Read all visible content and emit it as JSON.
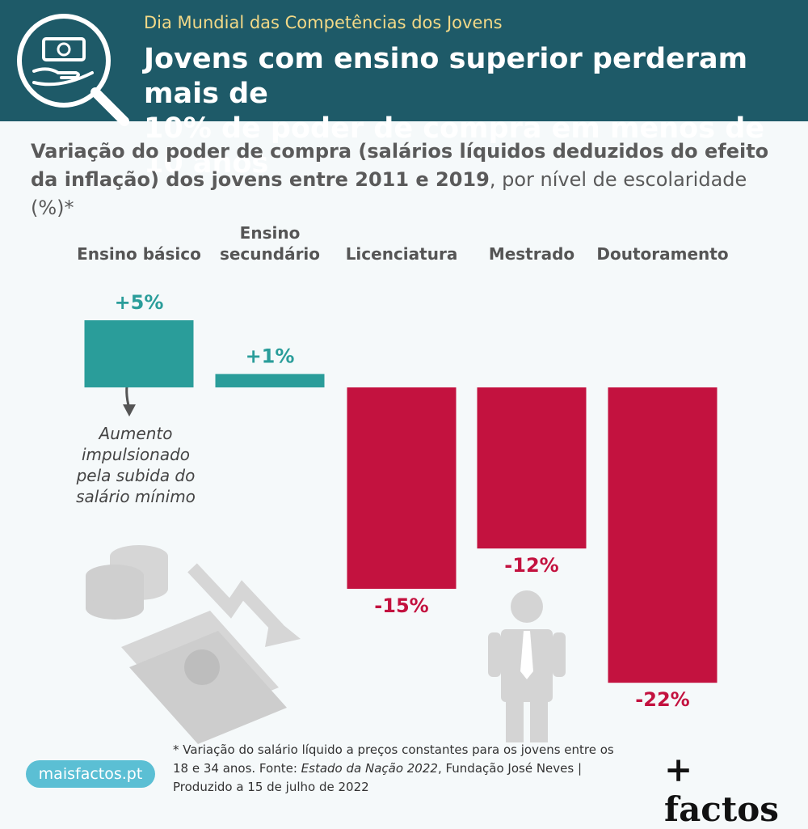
{
  "header": {
    "eyebrow": "Dia Mundial das Competências dos Jovens",
    "headline_line1": "Jovens com ensino superior perderam mais de",
    "headline_line2": "10% de poder de compra em menos de 10 anos"
  },
  "subtitle": {
    "bold_part": "Variação do poder de compra (salários líquidos deduzidos do efeito da inflação) dos jovens entre 2011 e 2019",
    "regular_part": ", por nível de escolaridade (%)*"
  },
  "annotation": {
    "lines": [
      "Aumento",
      "impulsionado",
      "pela subida do",
      "salário mínimo"
    ]
  },
  "footnote": {
    "text1": "* Variação do salário líquido a preços constantes para os jovens entre os 18 e 34 anos. Fonte: ",
    "source": "Estado da Nação 2022",
    "text2": ", Fundação José Neves | Produzido a 15 de julho de 2022"
  },
  "site_badge": "maisfactos.pt",
  "brand": "+ factos",
  "colors": {
    "positive": "#2a9d9a",
    "negative": "#c3123f",
    "header_bg": "#1e5a68"
  },
  "icons": [
    "money-hand-magnifier-icon",
    "coins-icon",
    "banknotes-icon",
    "down-trend-arrow-icon",
    "person-empty-pockets-icon",
    "curved-arrow-icon"
  ],
  "chart_data": {
    "type": "bar",
    "categories": [
      [
        "Ensino básico"
      ],
      [
        "Ensino",
        "secundário"
      ],
      [
        "Licenciatura"
      ],
      [
        "Mestrado"
      ],
      [
        "Doutoramento"
      ]
    ],
    "values": [
      5,
      1,
      -15,
      -12,
      -22
    ],
    "value_labels": [
      "+5%",
      "+1%",
      "-15%",
      "-12%",
      "-22%"
    ],
    "unit": "%"
  }
}
